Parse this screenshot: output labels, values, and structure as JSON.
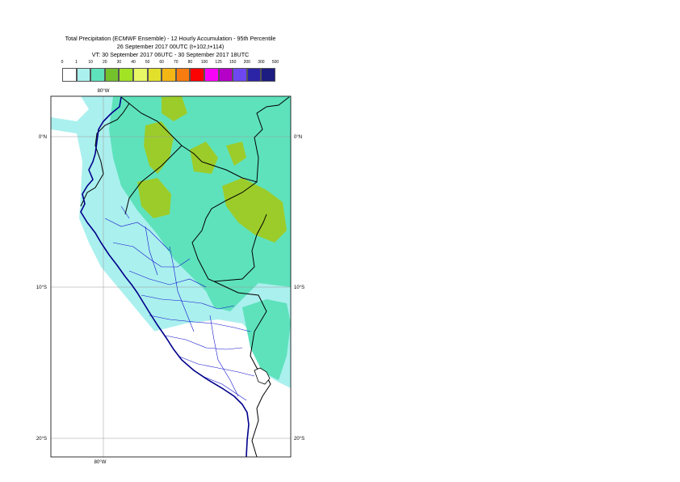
{
  "title": {
    "line1": "Total Precipitation (ECMWF Ensemble) - 12 Hourly Accumulation - 95th Percentile",
    "line2": "26 September 2017 00UTC (t+102,t+114)",
    "line3": "VT: 30 September 2017 06UTC - 30 September 2017 18UTC"
  },
  "legend": {
    "labels": [
      "0",
      "1",
      "10",
      "20",
      "30",
      "40",
      "50",
      "60",
      "70",
      "80",
      "100",
      "125",
      "150",
      "200",
      "300",
      "500"
    ],
    "colors": [
      "#ffffff",
      "#aaf0ee",
      "#5ee2bc",
      "#74c12c",
      "#a2e326",
      "#e8f765",
      "#e3e02c",
      "#f4b615",
      "#f97c10",
      "#fb0203",
      "#f903f8",
      "#b400c7",
      "#6e47f0",
      "#2b24a7",
      "#1d1c81"
    ]
  },
  "axes": {
    "lon_top": "80°W",
    "lon_bottom": "80°W",
    "lat_left": [
      "0°N",
      "10°S",
      "20°S"
    ],
    "lat_right": [
      "0°N",
      "10°S",
      "20°S"
    ]
  },
  "map": {
    "land_color": "#ffffff",
    "light_precip_color": "#aaf0ee",
    "medium_precip_color": "#5ee2bc",
    "heavy_precip_color": "#9ccc2a",
    "coastline_color": "#00008b",
    "border_color": "#000000",
    "region_border_color": "#1111cc"
  }
}
